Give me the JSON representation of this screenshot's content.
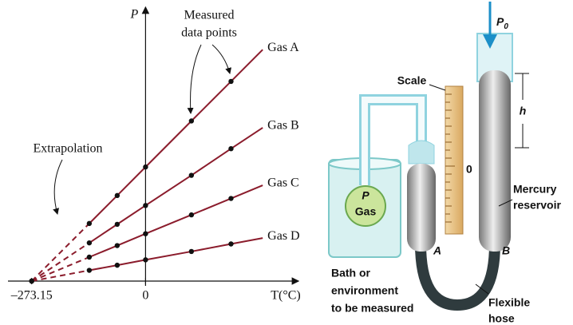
{
  "chart_data": {
    "type": "line",
    "axis_labels": {
      "y": "P",
      "x": "T(°C)"
    },
    "xlim": [
      -330,
      340
    ],
    "ylim": [
      0,
      100
    ],
    "xticks": [
      {
        "value": -273.15,
        "label": "–273.15"
      },
      0
    ],
    "color": "#8b1c2c",
    "annotations": [
      [
        "Measured",
        "data points"
      ],
      [
        "Extrapolation"
      ]
    ],
    "series": [
      {
        "name": "Gas A",
        "x": [
          -273.15,
          -135,
          -68,
          0,
          110,
          205,
          281
        ],
        "values": [
          0,
          21.4,
          31.8,
          42.4,
          59.5,
          74.2,
          86
        ]
      },
      {
        "name": "Gas B",
        "x": [
          -273.15,
          -135,
          -68,
          0,
          110,
          205,
          281
        ],
        "values": [
          0,
          14.2,
          21.1,
          28.1,
          39.3,
          49.2,
          57
        ]
      },
      {
        "name": "Gas C",
        "x": [
          -273.15,
          -135,
          -68,
          0,
          110,
          205,
          281
        ],
        "values": [
          0,
          8.9,
          13.2,
          17.6,
          24.6,
          30.7,
          35.6
        ]
      },
      {
        "name": "Gas D",
        "x": [
          -273.15,
          -135,
          -68,
          0,
          110,
          205,
          281
        ],
        "values": [
          0,
          4.0,
          5.9,
          7.9,
          11.0,
          13.8,
          16
        ]
      }
    ]
  },
  "diagram": {
    "scale": "Scale",
    "scale_zero": "0",
    "p0": {
      "symbol": "P",
      "subscript": "0"
    },
    "h": "h",
    "reservoir": [
      "Mercury",
      "reservoir"
    ],
    "gas": [
      "P",
      "Gas"
    ],
    "bath": [
      "Bath or",
      "environment",
      "to be measured"
    ],
    "a": "A",
    "b": "B",
    "hose": [
      "Flexible",
      "hose"
    ]
  }
}
